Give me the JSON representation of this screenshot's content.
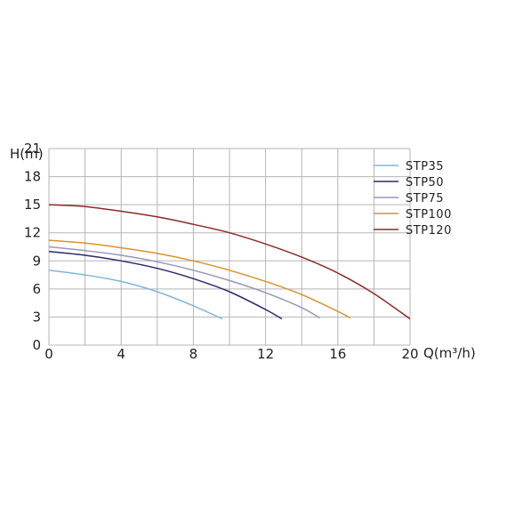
{
  "chart_data": {
    "type": "line",
    "title": "",
    "xlabel": "Q(m³/h)",
    "ylabel": "H(m)",
    "xlim": [
      0,
      20
    ],
    "ylim": [
      0,
      21
    ],
    "x_ticks": [
      0,
      4,
      8,
      12,
      16,
      20
    ],
    "y_ticks": [
      0,
      3,
      6,
      9,
      12,
      15,
      18,
      21
    ],
    "grid": true,
    "legend": "top-right",
    "series": [
      {
        "name": "STP35",
        "color": "#7fb6d8",
        "x": [
          0,
          2,
          4,
          6,
          8,
          9.6
        ],
        "y": [
          8.0,
          7.5,
          6.8,
          5.7,
          4.2,
          2.8
        ]
      },
      {
        "name": "STP50",
        "color": "#2a2a6a",
        "x": [
          0,
          2,
          4,
          6,
          8,
          10,
          12,
          12.9
        ],
        "y": [
          10.0,
          9.6,
          9.0,
          8.2,
          7.1,
          5.7,
          3.8,
          2.8
        ]
      },
      {
        "name": "STP75",
        "color": "#9a96b6",
        "x": [
          0,
          2,
          4,
          6,
          8,
          10,
          12,
          14,
          15
        ],
        "y": [
          10.5,
          10.1,
          9.6,
          8.9,
          8.0,
          6.9,
          5.6,
          4.0,
          2.9
        ]
      },
      {
        "name": "STP100",
        "color": "#d8922e",
        "x": [
          0,
          2,
          4,
          6,
          8,
          10,
          12,
          14,
          16,
          16.7
        ],
        "y": [
          11.2,
          10.9,
          10.4,
          9.8,
          9.0,
          8.0,
          6.8,
          5.4,
          3.6,
          2.9
        ]
      },
      {
        "name": "STP120",
        "color": "#8c2a2a",
        "x": [
          0,
          2,
          4,
          6,
          8,
          10,
          12,
          14,
          16,
          18,
          20
        ],
        "y": [
          15.0,
          14.8,
          14.3,
          13.7,
          12.9,
          12.0,
          10.8,
          9.4,
          7.7,
          5.5,
          2.8
        ]
      }
    ]
  }
}
